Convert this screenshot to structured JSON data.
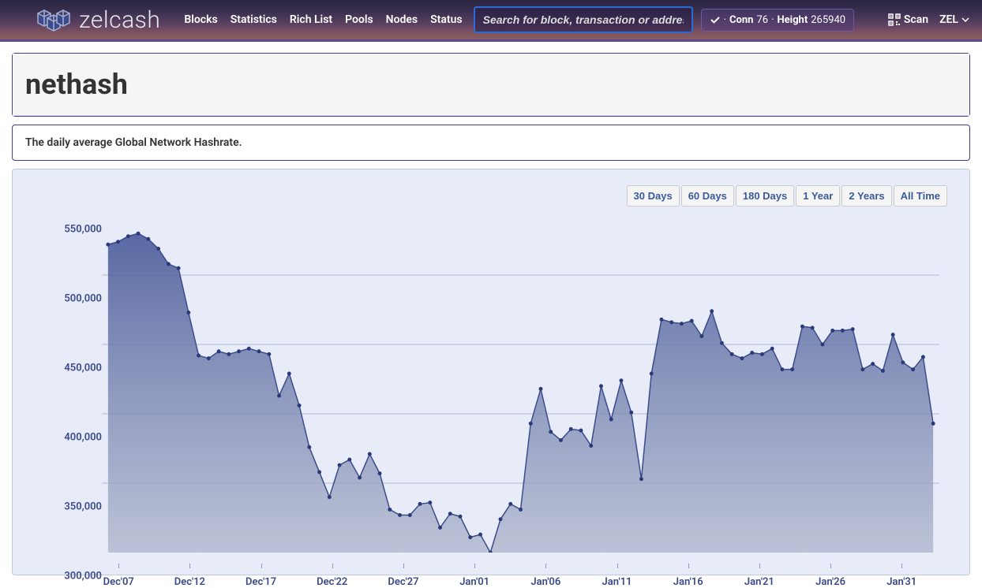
{
  "brand": "zelcash",
  "nav": {
    "links": [
      "Blocks",
      "Statistics",
      "Rich List",
      "Pools",
      "Nodes",
      "Status"
    ],
    "search_placeholder": "Search for block, transaction or address",
    "status": {
      "conn_label": "Conn",
      "conn_value": "76",
      "height_label": "Height",
      "height_value": "265940"
    },
    "scan": "Scan",
    "currency": "ZEL"
  },
  "page": {
    "title": "nethash",
    "description": "The daily average Global Network Hashrate."
  },
  "chart": {
    "type": "area",
    "range_buttons": [
      "30 Days",
      "60 Days",
      "180 Days",
      "1 Year",
      "2 Years",
      "All Time"
    ],
    "ylim": [
      300000,
      550000
    ],
    "ytick_step": 50000,
    "ytick_labels": [
      "550,000",
      "500,000",
      "450,000",
      "400,000",
      "350,000",
      "300,000"
    ],
    "x_labels": [
      "Dec'07",
      "Dec'12",
      "Dec'17",
      "Dec'22",
      "Dec'27",
      "Jan'01",
      "Jan'06",
      "Jan'11",
      "Jan'16",
      "Jan'21",
      "Jan'26",
      "Jan'31"
    ],
    "x_label_positions_pct": [
      2,
      10.5,
      19,
      27.5,
      36,
      44.5,
      53,
      61.5,
      70,
      78.5,
      87,
      95.5
    ],
    "background_color": "#e8ecf8",
    "grid_color": "#8a94c0",
    "area_gradient_top": "#4a5a9a",
    "area_gradient_bottom": "#a8b0c8",
    "line_color": "#3a4a8a",
    "marker_color": "#2a3a7a",
    "marker_radius": 2.5,
    "label_color": "#3a4a8a",
    "label_fontsize": 13,
    "values": [
      522000,
      524000,
      528000,
      530000,
      526000,
      519000,
      508000,
      505000,
      473000,
      442000,
      440000,
      445000,
      443000,
      445000,
      447000,
      445000,
      443000,
      413000,
      429000,
      406000,
      376000,
      358000,
      340000,
      363000,
      367000,
      354000,
      371000,
      357000,
      331000,
      327000,
      327000,
      335000,
      336000,
      318000,
      328000,
      326000,
      311000,
      313000,
      300000,
      324000,
      335000,
      331000,
      393000,
      418000,
      387000,
      381000,
      389000,
      388000,
      377000,
      420000,
      396000,
      424000,
      401000,
      353000,
      429000,
      468000,
      466000,
      465000,
      467000,
      456000,
      474000,
      451000,
      443000,
      440000,
      444000,
      443000,
      447000,
      432000,
      432000,
      463000,
      462000,
      450000,
      460000,
      460000,
      461000,
      432000,
      436000,
      431000,
      457000,
      437000,
      432000,
      441000,
      393000
    ]
  }
}
